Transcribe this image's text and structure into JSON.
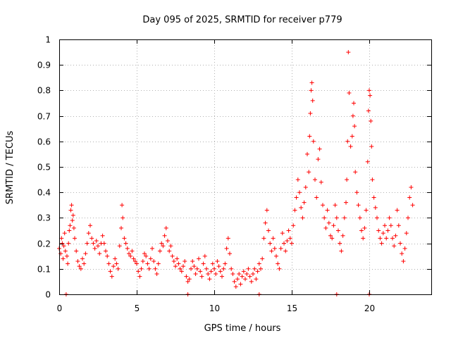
{
  "chart_data": {
    "type": "scatter",
    "title": "Day 095 of 2025, SRMTID for receiver p779",
    "xlabel": "GPS time / hours",
    "ylabel": "SRMTID / TECUs",
    "xlim": [
      0,
      24
    ],
    "ylim": [
      0,
      1
    ],
    "xticks": [
      0,
      5,
      10,
      15,
      20
    ],
    "xtick_labels": [
      "0",
      "5",
      "10",
      "15",
      "20"
    ],
    "yticks": [
      0,
      0.1,
      0.2,
      0.3,
      0.4,
      0.5,
      0.6,
      0.7,
      0.8,
      0.9,
      1
    ],
    "ytick_labels": [
      "0",
      "0.1",
      "0.2",
      "0.3",
      "0.4",
      "0.5",
      "0.6",
      "0.7",
      "0.8",
      "0.9",
      "1"
    ],
    "grid": true,
    "marker": "+",
    "color": "#ff0000",
    "series": [
      {
        "name": "SRMTID",
        "points": [
          [
            0.0,
            0.18
          ],
          [
            0.1,
            0.16
          ],
          [
            0.15,
            0.22
          ],
          [
            0.2,
            0.2
          ],
          [
            0.25,
            0.14
          ],
          [
            0.3,
            0.19
          ],
          [
            0.35,
            0.24
          ],
          [
            0.4,
            0.17
          ],
          [
            0.5,
            0.15
          ],
          [
            0.55,
            0.12
          ],
          [
            0.6,
            0.2
          ],
          [
            0.65,
            0.25
          ],
          [
            0.7,
            0.27
          ],
          [
            0.75,
            0.33
          ],
          [
            0.8,
            0.35
          ],
          [
            0.85,
            0.29
          ],
          [
            0.9,
            0.31
          ],
          [
            0.95,
            0.26
          ],
          [
            1.0,
            0.22
          ],
          [
            1.1,
            0.17
          ],
          [
            1.2,
            0.13
          ],
          [
            1.3,
            0.11
          ],
          [
            1.4,
            0.1
          ],
          [
            1.5,
            0.14
          ],
          [
            1.6,
            0.12
          ],
          [
            1.7,
            0.16
          ],
          [
            1.8,
            0.2
          ],
          [
            1.9,
            0.24
          ],
          [
            2.0,
            0.27
          ],
          [
            2.1,
            0.22
          ],
          [
            2.2,
            0.2
          ],
          [
            2.3,
            0.18
          ],
          [
            2.4,
            0.21
          ],
          [
            2.5,
            0.19
          ],
          [
            2.6,
            0.16
          ],
          [
            2.7,
            0.2
          ],
          [
            2.8,
            0.23
          ],
          [
            2.9,
            0.2
          ],
          [
            3.0,
            0.17
          ],
          [
            3.1,
            0.15
          ],
          [
            3.2,
            0.12
          ],
          [
            3.3,
            0.09
          ],
          [
            3.4,
            0.07
          ],
          [
            3.5,
            0.11
          ],
          [
            3.6,
            0.14
          ],
          [
            3.7,
            0.12
          ],
          [
            3.8,
            0.1
          ],
          [
            3.9,
            0.19
          ],
          [
            4.0,
            0.26
          ],
          [
            4.05,
            0.35
          ],
          [
            4.1,
            0.3
          ],
          [
            4.2,
            0.22
          ],
          [
            4.3,
            0.2
          ],
          [
            4.4,
            0.18
          ],
          [
            4.5,
            0.16
          ],
          [
            4.6,
            0.15
          ],
          [
            4.7,
            0.17
          ],
          [
            4.8,
            0.14
          ],
          [
            4.9,
            0.13
          ],
          [
            5.0,
            0.12
          ],
          [
            5.1,
            0.09
          ],
          [
            5.2,
            0.07
          ],
          [
            5.3,
            0.1
          ],
          [
            5.4,
            0.13
          ],
          [
            5.5,
            0.16
          ],
          [
            5.6,
            0.15
          ],
          [
            5.7,
            0.12
          ],
          [
            5.8,
            0.1
          ],
          [
            5.9,
            0.14
          ],
          [
            6.0,
            0.18
          ],
          [
            6.1,
            0.13
          ],
          [
            6.2,
            0.1
          ],
          [
            6.3,
            0.08
          ],
          [
            6.4,
            0.12
          ],
          [
            6.5,
            0.17
          ],
          [
            6.6,
            0.2
          ],
          [
            6.7,
            0.19
          ],
          [
            6.8,
            0.23
          ],
          [
            6.9,
            0.26
          ],
          [
            7.0,
            0.21
          ],
          [
            7.1,
            0.17
          ],
          [
            7.2,
            0.19
          ],
          [
            7.3,
            0.15
          ],
          [
            7.4,
            0.13
          ],
          [
            7.5,
            0.11
          ],
          [
            7.6,
            0.14
          ],
          [
            7.7,
            0.12
          ],
          [
            7.8,
            0.1
          ],
          [
            7.9,
            0.09
          ],
          [
            8.0,
            0.11
          ],
          [
            8.1,
            0.13
          ],
          [
            8.2,
            0.07
          ],
          [
            8.3,
            0.05
          ],
          [
            8.4,
            0.06
          ],
          [
            8.5,
            0.1
          ],
          [
            8.6,
            0.13
          ],
          [
            8.7,
            0.11
          ],
          [
            8.8,
            0.08
          ],
          [
            8.9,
            0.1
          ],
          [
            9.0,
            0.14
          ],
          [
            9.1,
            0.09
          ],
          [
            9.2,
            0.07
          ],
          [
            9.3,
            0.12
          ],
          [
            9.4,
            0.15
          ],
          [
            9.5,
            0.1
          ],
          [
            9.6,
            0.08
          ],
          [
            9.7,
            0.06
          ],
          [
            9.8,
            0.09
          ],
          [
            9.9,
            0.12
          ],
          [
            10.0,
            0.1
          ],
          [
            10.1,
            0.08
          ],
          [
            10.2,
            0.13
          ],
          [
            10.3,
            0.11
          ],
          [
            10.4,
            0.09
          ],
          [
            10.5,
            0.07
          ],
          [
            10.6,
            0.1
          ],
          [
            10.7,
            0.12
          ],
          [
            10.8,
            0.18
          ],
          [
            10.9,
            0.22
          ],
          [
            11.0,
            0.16
          ],
          [
            11.1,
            0.1
          ],
          [
            11.2,
            0.08
          ],
          [
            11.3,
            0.05
          ],
          [
            11.4,
            0.03
          ],
          [
            11.5,
            0.06
          ],
          [
            11.6,
            0.08
          ],
          [
            11.7,
            0.04
          ],
          [
            11.8,
            0.07
          ],
          [
            11.9,
            0.09
          ],
          [
            12.0,
            0.06
          ],
          [
            12.1,
            0.08
          ],
          [
            12.2,
            0.1
          ],
          [
            12.3,
            0.07
          ],
          [
            12.4,
            0.05
          ],
          [
            12.5,
            0.08
          ],
          [
            12.6,
            0.1
          ],
          [
            12.7,
            0.06
          ],
          [
            12.8,
            0.09
          ],
          [
            12.9,
            0.12
          ],
          [
            13.0,
            0.1
          ],
          [
            13.1,
            0.14
          ],
          [
            13.2,
            0.22
          ],
          [
            13.3,
            0.28
          ],
          [
            13.4,
            0.33
          ],
          [
            13.5,
            0.25
          ],
          [
            13.6,
            0.2
          ],
          [
            13.7,
            0.17
          ],
          [
            13.8,
            0.22
          ],
          [
            13.9,
            0.18
          ],
          [
            14.0,
            0.15
          ],
          [
            14.1,
            0.12
          ],
          [
            14.2,
            0.1
          ],
          [
            14.3,
            0.18
          ],
          [
            14.4,
            0.24
          ],
          [
            14.5,
            0.2
          ],
          [
            14.6,
            0.17
          ],
          [
            14.7,
            0.21
          ],
          [
            14.8,
            0.25
          ],
          [
            14.9,
            0.22
          ],
          [
            15.0,
            0.2
          ],
          [
            15.1,
            0.27
          ],
          [
            15.2,
            0.33
          ],
          [
            15.3,
            0.38
          ],
          [
            15.4,
            0.45
          ],
          [
            15.5,
            0.4
          ],
          [
            15.6,
            0.34
          ],
          [
            15.7,
            0.3
          ],
          [
            15.8,
            0.36
          ],
          [
            15.9,
            0.42
          ],
          [
            16.0,
            0.55
          ],
          [
            16.1,
            0.48
          ],
          [
            16.15,
            0.62
          ],
          [
            16.2,
            0.71
          ],
          [
            16.25,
            0.8
          ],
          [
            16.3,
            0.83
          ],
          [
            16.35,
            0.76
          ],
          [
            16.4,
            0.6
          ],
          [
            16.5,
            0.45
          ],
          [
            16.6,
            0.38
          ],
          [
            16.7,
            0.53
          ],
          [
            16.8,
            0.57
          ],
          [
            16.9,
            0.44
          ],
          [
            17.0,
            0.35
          ],
          [
            17.1,
            0.3
          ],
          [
            17.2,
            0.26
          ],
          [
            17.3,
            0.33
          ],
          [
            17.4,
            0.28
          ],
          [
            17.5,
            0.23
          ],
          [
            17.6,
            0.22
          ],
          [
            17.7,
            0.27
          ],
          [
            17.8,
            0.35
          ],
          [
            17.9,
            0.3
          ],
          [
            18.0,
            0.25
          ],
          [
            18.1,
            0.2
          ],
          [
            18.2,
            0.17
          ],
          [
            18.3,
            0.23
          ],
          [
            18.4,
            0.3
          ],
          [
            18.5,
            0.36
          ],
          [
            18.55,
            0.45
          ],
          [
            18.6,
            0.6
          ],
          [
            18.65,
            0.95
          ],
          [
            18.7,
            0.79
          ],
          [
            18.8,
            0.58
          ],
          [
            18.9,
            0.62
          ],
          [
            18.95,
            0.7
          ],
          [
            19.0,
            0.75
          ],
          [
            19.05,
            0.66
          ],
          [
            19.1,
            0.48
          ],
          [
            19.2,
            0.4
          ],
          [
            19.3,
            0.35
          ],
          [
            19.4,
            0.3
          ],
          [
            19.5,
            0.25
          ],
          [
            19.6,
            0.22
          ],
          [
            19.7,
            0.26
          ],
          [
            19.8,
            0.33
          ],
          [
            19.9,
            0.52
          ],
          [
            19.95,
            0.72
          ],
          [
            20.0,
            0.8
          ],
          [
            20.05,
            0.78
          ],
          [
            20.1,
            0.68
          ],
          [
            20.15,
            0.58
          ],
          [
            20.2,
            0.45
          ],
          [
            20.3,
            0.38
          ],
          [
            20.4,
            0.34
          ],
          [
            20.5,
            0.3
          ],
          [
            20.6,
            0.25
          ],
          [
            20.7,
            0.22
          ],
          [
            20.8,
            0.2
          ],
          [
            20.9,
            0.24
          ],
          [
            21.0,
            0.27
          ],
          [
            21.1,
            0.22
          ],
          [
            21.2,
            0.25
          ],
          [
            21.3,
            0.3
          ],
          [
            21.4,
            0.27
          ],
          [
            21.5,
            0.22
          ],
          [
            21.6,
            0.19
          ],
          [
            21.7,
            0.23
          ],
          [
            21.8,
            0.33
          ],
          [
            21.9,
            0.27
          ],
          [
            22.0,
            0.2
          ],
          [
            22.1,
            0.16
          ],
          [
            22.2,
            0.13
          ],
          [
            22.3,
            0.18
          ],
          [
            22.4,
            0.24
          ],
          [
            22.5,
            0.3
          ],
          [
            22.6,
            0.38
          ],
          [
            22.7,
            0.42
          ],
          [
            22.8,
            0.35
          ],
          [
            0.45,
            0.0
          ],
          [
            8.3,
            0.0
          ],
          [
            12.9,
            0.0
          ],
          [
            17.9,
            0.0
          ],
          [
            20.0,
            0.0
          ]
        ]
      }
    ]
  }
}
